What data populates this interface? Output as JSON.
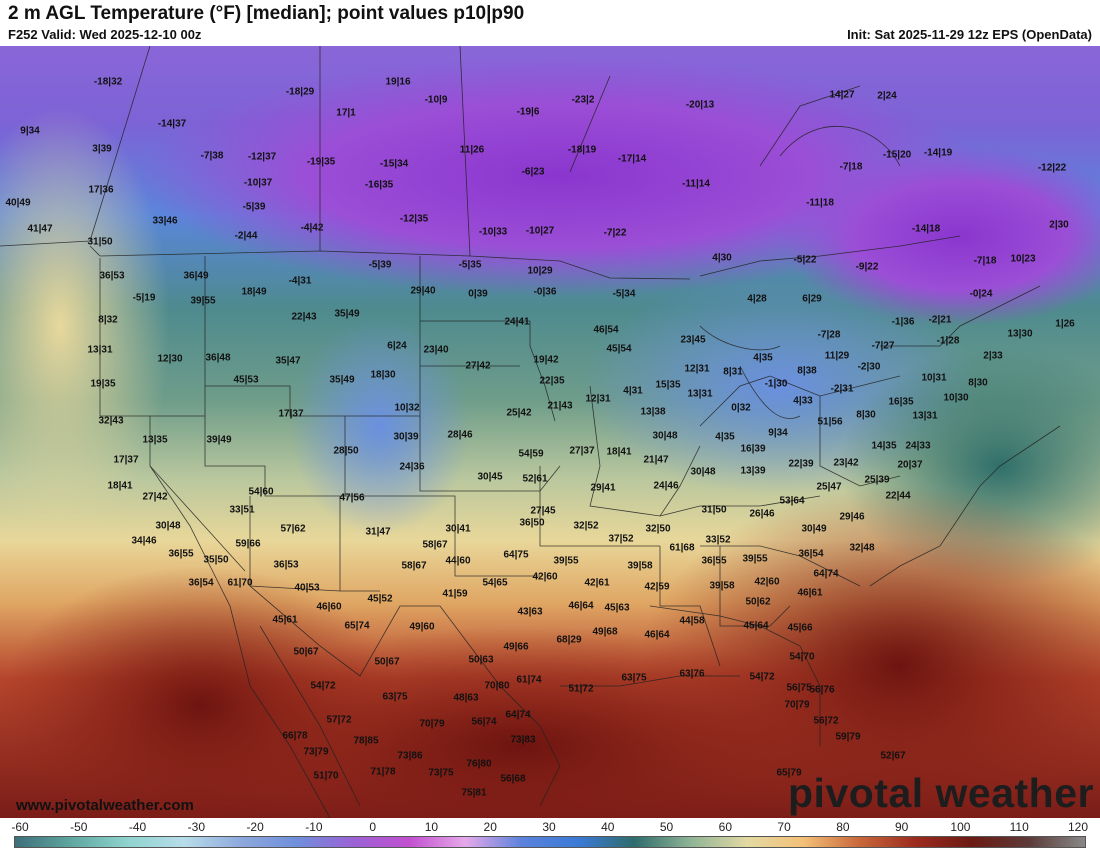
{
  "header": {
    "title": "2 m AGL Temperature (°F) [median]; point values p10|p90",
    "valid": "F252 Valid: Wed 2025-12-10 00z",
    "init": "Init: Sat 2025-11-29 12z EPS (OpenData)"
  },
  "footer": {
    "website": "www.pivotalweather.com",
    "brand": "pivotal weather"
  },
  "colorbar": {
    "ticks": [
      "-60",
      "-50",
      "-40",
      "-30",
      "-20",
      "-10",
      "0",
      "10",
      "20",
      "30",
      "40",
      "50",
      "60",
      "70",
      "80",
      "90",
      "100",
      "110",
      "120"
    ],
    "colors": [
      "#3e6f7a",
      "#5fa7a0",
      "#8fd3cf",
      "#b7dde9",
      "#8fa9dd",
      "#6f8fdb",
      "#9b62d6",
      "#c24fcf",
      "#e5a9ea",
      "#5b82dc",
      "#3a7ad6",
      "#2f6c6c",
      "#8fb496",
      "#e3d9a3",
      "#f3c077",
      "#c8673b",
      "#9c2a1e",
      "#6b1a14",
      "#5c3a38",
      "#888888"
    ]
  },
  "points": [
    {
      "label": "-18|32"
    },
    {
      "label": "19|16"
    },
    {
      "label": "-18|29"
    },
    {
      "label": "-10|9"
    },
    {
      "label": "-23|2"
    },
    {
      "label": "-20|13"
    },
    {
      "label": "14|27"
    },
    {
      "label": "2|24"
    },
    {
      "label": "9|34"
    },
    {
      "label": "-14|37"
    },
    {
      "label": "17|1"
    },
    {
      "label": "-19|6"
    },
    {
      "label": "3|39"
    },
    {
      "label": "-7|38"
    },
    {
      "label": "-12|37"
    },
    {
      "label": "-19|35"
    },
    {
      "label": "-15|34"
    },
    {
      "label": "11|26"
    },
    {
      "label": "-18|19"
    },
    {
      "label": "-17|14"
    },
    {
      "label": "-7|18"
    },
    {
      "label": "-15|20"
    },
    {
      "label": "-14|19"
    },
    {
      "label": "-12|22"
    },
    {
      "label": "17|36"
    },
    {
      "label": "-10|37"
    },
    {
      "label": "-16|35"
    },
    {
      "label": "-6|23"
    },
    {
      "label": "-11|14"
    },
    {
      "label": "40|49"
    },
    {
      "label": "-5|39"
    },
    {
      "label": "-11|18"
    },
    {
      "label": "33|46"
    },
    {
      "label": "-12|35"
    },
    {
      "label": "2|30"
    },
    {
      "label": "41|47"
    },
    {
      "label": "-2|44"
    },
    {
      "label": "-4|42"
    },
    {
      "label": "-10|33"
    },
    {
      "label": "-10|27"
    },
    {
      "label": "-7|22"
    },
    {
      "label": "-14|18"
    },
    {
      "label": "31|50"
    },
    {
      "label": "36|53"
    },
    {
      "label": "36|49"
    },
    {
      "label": "-5|39"
    },
    {
      "label": "-5|35"
    },
    {
      "label": "4|30"
    },
    {
      "label": "-5|22"
    },
    {
      "label": "-9|22"
    },
    {
      "label": "-7|18"
    },
    {
      "label": "10|23"
    },
    {
      "label": "10|29"
    },
    {
      "label": "-4|31"
    },
    {
      "label": "18|49"
    },
    {
      "label": "29|40"
    },
    {
      "label": "0|39"
    },
    {
      "label": "-0|36"
    },
    {
      "label": "-5|34"
    },
    {
      "label": "4|28"
    },
    {
      "label": "6|29"
    },
    {
      "label": "-0|24"
    },
    {
      "label": "-5|19"
    },
    {
      "label": "39|55"
    },
    {
      "label": "35|49"
    },
    {
      "label": "22|43"
    },
    {
      "label": "24|41"
    },
    {
      "label": "-1|36"
    },
    {
      "label": "-2|21"
    },
    {
      "label": "1|26"
    },
    {
      "label": "8|32"
    },
    {
      "label": "46|54"
    },
    {
      "label": "-7|28"
    },
    {
      "label": "13|30"
    },
    {
      "label": "6|24"
    },
    {
      "label": "23|40"
    },
    {
      "label": "23|45"
    },
    {
      "label": "-1|28"
    },
    {
      "label": "13|31"
    },
    {
      "label": "45|54"
    },
    {
      "label": "-7|27"
    },
    {
      "label": "2|33"
    },
    {
      "label": "12|30"
    },
    {
      "label": "36|48"
    },
    {
      "label": "35|47"
    },
    {
      "label": "27|42"
    },
    {
      "label": "19|42"
    },
    {
      "label": "4|35"
    },
    {
      "label": "11|29"
    },
    {
      "label": "8|31"
    },
    {
      "label": "12|31"
    },
    {
      "label": "-2|30"
    },
    {
      "label": "19|35"
    },
    {
      "label": "45|53"
    },
    {
      "label": "35|49"
    },
    {
      "label": "18|30"
    },
    {
      "label": "22|35"
    },
    {
      "label": "8|38"
    },
    {
      "label": "10|31"
    },
    {
      "label": "8|30"
    },
    {
      "label": "15|35"
    },
    {
      "label": "4|31"
    },
    {
      "label": "-1|30"
    },
    {
      "label": "13|31"
    },
    {
      "label": "-2|31"
    },
    {
      "label": "10|30"
    },
    {
      "label": "12|31"
    },
    {
      "label": "4|33"
    },
    {
      "label": "16|35"
    },
    {
      "label": "10|32"
    },
    {
      "label": "25|42"
    },
    {
      "label": "21|43"
    },
    {
      "label": "13|38"
    },
    {
      "label": "0|32"
    },
    {
      "label": "8|30"
    },
    {
      "label": "13|31"
    },
    {
      "label": "17|37"
    },
    {
      "label": "32|43"
    },
    {
      "label": "51|56"
    },
    {
      "label": "13|35"
    },
    {
      "label": "39|49"
    },
    {
      "label": "30|39"
    },
    {
      "label": "28|46"
    },
    {
      "label": "30|48"
    },
    {
      "label": "4|35"
    },
    {
      "label": "9|34"
    },
    {
      "label": "14|35"
    },
    {
      "label": "24|33"
    },
    {
      "label": "28|50"
    },
    {
      "label": "27|37"
    },
    {
      "label": "18|41"
    },
    {
      "label": "16|39"
    },
    {
      "label": "17|37"
    },
    {
      "label": "54|59"
    },
    {
      "label": "21|47"
    },
    {
      "label": "13|39"
    },
    {
      "label": "22|39"
    },
    {
      "label": "23|42"
    },
    {
      "label": "20|37"
    },
    {
      "label": "24|36"
    },
    {
      "label": "30|45"
    },
    {
      "label": "30|48"
    },
    {
      "label": "18|41"
    },
    {
      "label": "52|61"
    },
    {
      "label": "25|47"
    },
    {
      "label": "25|39"
    },
    {
      "label": "27|42"
    },
    {
      "label": "54|60"
    },
    {
      "label": "47|56"
    },
    {
      "label": "29|41"
    },
    {
      "label": "24|46"
    },
    {
      "label": "22|44"
    },
    {
      "label": "33|51"
    },
    {
      "label": "53|64"
    },
    {
      "label": "27|45"
    },
    {
      "label": "31|50"
    },
    {
      "label": "26|46"
    },
    {
      "label": "29|46"
    },
    {
      "label": "30|48"
    },
    {
      "label": "57|62"
    },
    {
      "label": "30|41"
    },
    {
      "label": "36|50"
    },
    {
      "label": "32|52"
    },
    {
      "label": "32|50"
    },
    {
      "label": "30|49"
    },
    {
      "label": "31|47"
    },
    {
      "label": "34|46"
    },
    {
      "label": "59|66"
    },
    {
      "label": "58|67"
    },
    {
      "label": "37|52"
    },
    {
      "label": "33|52"
    },
    {
      "label": "32|48"
    },
    {
      "label": "36|55"
    },
    {
      "label": "61|68"
    },
    {
      "label": "35|50"
    },
    {
      "label": "64|75"
    },
    {
      "label": "39|55"
    },
    {
      "label": "39|55"
    },
    {
      "label": "36|54"
    },
    {
      "label": "36|53"
    },
    {
      "label": "58|67"
    },
    {
      "label": "44|60"
    },
    {
      "label": "39|58"
    },
    {
      "label": "36|55"
    },
    {
      "label": "36|54"
    },
    {
      "label": "61|70"
    },
    {
      "label": "64|74"
    },
    {
      "label": "40|53"
    },
    {
      "label": "54|65"
    },
    {
      "label": "42|60"
    },
    {
      "label": "42|61"
    },
    {
      "label": "42|59"
    },
    {
      "label": "39|58"
    },
    {
      "label": "42|60"
    },
    {
      "label": "41|59"
    },
    {
      "label": "46|61"
    },
    {
      "label": "45|52"
    },
    {
      "label": "46|60"
    },
    {
      "label": "50|62"
    },
    {
      "label": "43|63"
    },
    {
      "label": "46|64"
    },
    {
      "label": "45|63"
    },
    {
      "label": "45|61"
    },
    {
      "label": "65|74"
    },
    {
      "label": "49|60"
    },
    {
      "label": "44|58"
    },
    {
      "label": "45|64"
    },
    {
      "label": "45|66"
    },
    {
      "label": "49|68"
    },
    {
      "label": "46|64"
    },
    {
      "label": "49|66"
    },
    {
      "label": "50|67"
    },
    {
      "label": "68|29"
    },
    {
      "label": "50|67"
    },
    {
      "label": "50|63"
    },
    {
      "label": "54|70"
    },
    {
      "label": "51|72"
    },
    {
      "label": "63|75"
    },
    {
      "label": "61|74"
    },
    {
      "label": "54|72"
    },
    {
      "label": "54|72"
    },
    {
      "label": "70|80"
    },
    {
      "label": "56|75"
    },
    {
      "label": "63|76"
    },
    {
      "label": "63|75"
    },
    {
      "label": "48|63"
    },
    {
      "label": "56|76"
    },
    {
      "label": "70|79"
    },
    {
      "label": "64|74"
    },
    {
      "label": "57|72"
    },
    {
      "label": "70|79"
    },
    {
      "label": "56|74"
    },
    {
      "label": "56|72"
    },
    {
      "label": "66|78"
    },
    {
      "label": "78|85"
    },
    {
      "label": "73|83"
    },
    {
      "label": "59|79"
    },
    {
      "label": "73|79"
    },
    {
      "label": "73|86"
    },
    {
      "label": "52|67"
    },
    {
      "label": "76|80"
    },
    {
      "label": "51|70"
    },
    {
      "label": "71|78"
    },
    {
      "label": "73|75"
    },
    {
      "label": "56|68"
    },
    {
      "label": "65|79"
    },
    {
      "label": "75|81"
    },
    {
      "label": "55|72"
    }
  ]
}
